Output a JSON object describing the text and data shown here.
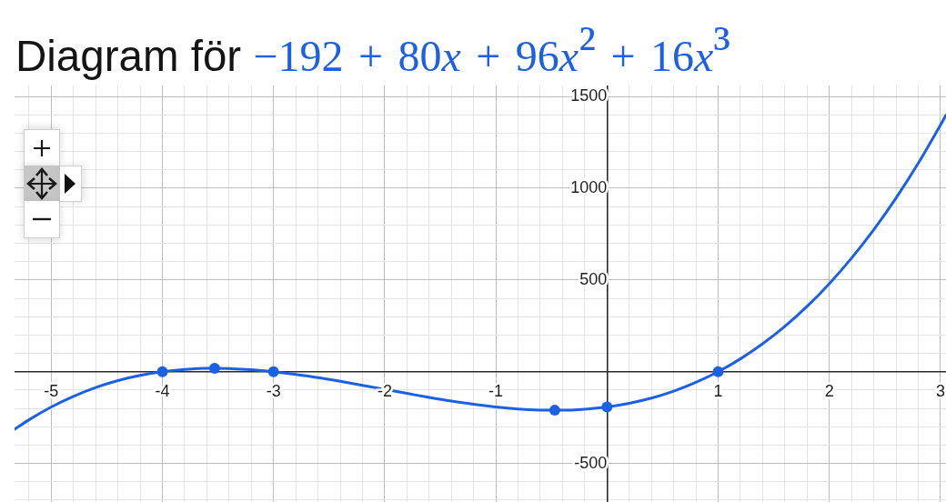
{
  "chart_data": {
    "type": "line",
    "title": "Diagram för −192 + 80x + 96x² + 16x³",
    "xlim": [
      -5.33,
      3.05
    ],
    "ylim": [
      -710,
      1560
    ],
    "xticks": [
      {
        "value": -5.2,
        "label": null
      },
      -5,
      {
        "value": -4.8,
        "label": null
      },
      {
        "value": -4.6,
        "label": null
      },
      {
        "value": -4.4,
        "label": null
      },
      {
        "value": -4.2,
        "label": null
      },
      -4,
      {
        "value": -3.8,
        "label": null
      },
      {
        "value": -3.6,
        "label": null
      },
      {
        "value": -3.4,
        "label": null
      },
      {
        "value": -3.2,
        "label": null
      },
      -3,
      {
        "value": -2.8,
        "label": null
      },
      {
        "value": -2.6,
        "label": null
      },
      {
        "value": -2.4,
        "label": null
      },
      {
        "value": -2.2,
        "label": null
      },
      -2,
      {
        "value": -1.8,
        "label": null
      },
      {
        "value": -1.6,
        "label": null
      },
      {
        "value": -1.4,
        "label": null
      },
      {
        "value": -1.2,
        "label": null
      },
      -1,
      {
        "value": -0.8,
        "label": null
      },
      {
        "value": -0.6,
        "label": null
      },
      {
        "value": -0.4,
        "label": null
      },
      {
        "value": -0.2,
        "label": null
      },
      {
        "value": 0,
        "label": null
      },
      {
        "value": 0.2,
        "label": null
      },
      {
        "value": 0.4,
        "label": null
      },
      {
        "value": 0.6,
        "label": null
      },
      {
        "value": 0.8,
        "label": null
      },
      1,
      {
        "value": 1.2,
        "label": null
      },
      {
        "value": 1.4,
        "label": null
      },
      {
        "value": 1.6,
        "label": null
      },
      {
        "value": 1.8,
        "label": null
      },
      2,
      {
        "value": 2.2,
        "label": null
      },
      {
        "value": 2.4,
        "label": null
      },
      {
        "value": 2.6,
        "label": null
      },
      {
        "value": 2.8,
        "label": null
      },
      3
    ],
    "yticks": [
      {
        "value": -700,
        "label": null
      },
      {
        "value": -600,
        "label": null
      },
      -500,
      {
        "value": -400,
        "label": null
      },
      {
        "value": -300,
        "label": null
      },
      {
        "value": -200,
        "label": null
      },
      {
        "value": -100,
        "label": null
      },
      {
        "value": 0,
        "label": null
      },
      {
        "value": 100,
        "label": null
      },
      {
        "value": 200,
        "label": null
      },
      {
        "value": 300,
        "label": null
      },
      {
        "value": 400,
        "label": null
      },
      500,
      {
        "value": 600,
        "label": null
      },
      {
        "value": 700,
        "label": null
      },
      {
        "value": 800,
        "label": null
      },
      {
        "value": 900,
        "label": null
      },
      1000,
      {
        "value": 1100,
        "label": null
      },
      {
        "value": 1200,
        "label": null
      },
      {
        "value": 1300,
        "label": null
      },
      {
        "value": 1400,
        "label": null
      },
      1500
    ],
    "grid": true,
    "series": [
      {
        "color": "#1c60e4",
        "marker": "none",
        "line_style": "solid",
        "x": [
          -5.33,
          -5.2,
          -5.0,
          -4.8,
          -4.6,
          -4.4,
          -4.2,
          -4.0,
          -3.8,
          -3.6,
          -3.53,
          -3.4,
          -3.2,
          -3.0,
          -2.8,
          -2.6,
          -2.4,
          -2.2,
          -2.0,
          -1.8,
          -1.6,
          -1.4,
          -1.2,
          -1.0,
          -0.8,
          -0.6,
          -0.47,
          -0.4,
          -0.2,
          0,
          0.2,
          0.4,
          0.6,
          0.8,
          1.0,
          1.2,
          1.4,
          1.6,
          1.8,
          2.0,
          2.2,
          2.4,
          2.6,
          2.8,
          3.0,
          3.05
        ],
        "values": [
          -314,
          -262,
          -192,
          -134,
          -86,
          -48,
          -20,
          0,
          12,
          18,
          18,
          17,
          11,
          0,
          -15,
          -32,
          -52,
          -74,
          -96,
          -118,
          -140,
          -160,
          -177,
          -192,
          -203,
          -209,
          -210,
          -210,
          -204,
          -192,
          -172,
          -144,
          -106,
          -58,
          0,
          70,
          152,
          247,
          356,
          480,
          619,
          774,
          946,
          1136,
          1344,
          1399
        ]
      },
      {
        "type": "scatter",
        "color": "#1c60e4",
        "marker": "circle",
        "x": [
          -4,
          -3.53,
          -3,
          -0.47,
          0,
          1
        ],
        "values": [
          0,
          18,
          0,
          -210,
          -192,
          0
        ]
      }
    ]
  }
}
